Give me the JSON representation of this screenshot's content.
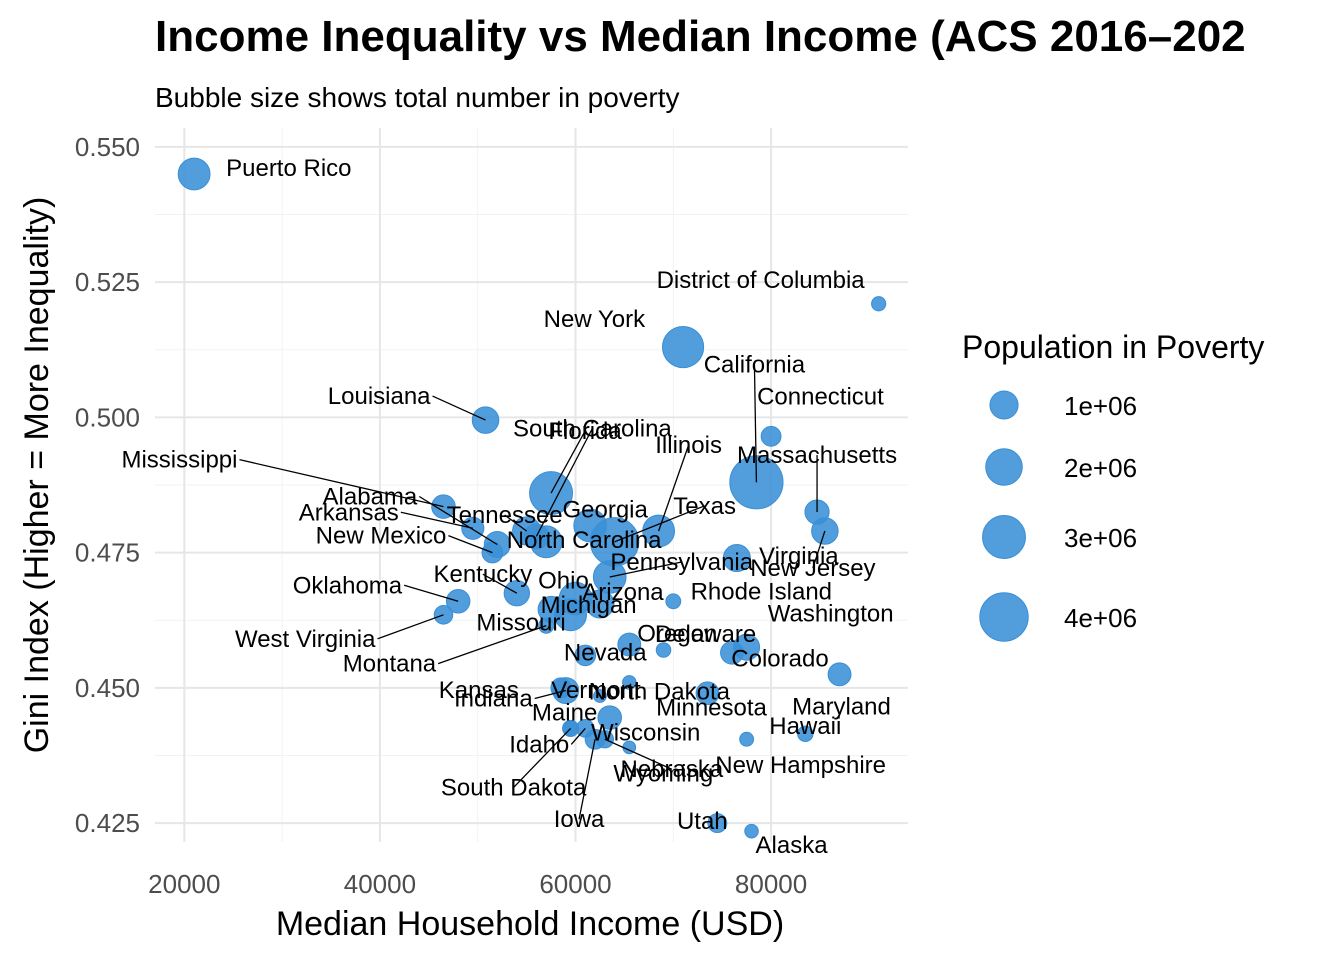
{
  "chart_data": {
    "type": "scatter",
    "title": "Income Inequality vs Median Income (ACS 2016–202",
    "subtitle": "Bubble size shows total number in poverty",
    "xlabel": "Median Household Income (USD)",
    "ylabel": "Gini Index (Higher = More Inequality)",
    "xlim": [
      17000,
      94000
    ],
    "ylim": [
      0.4215,
      0.5535
    ],
    "x_ticks": [
      20000,
      40000,
      60000,
      80000
    ],
    "x_tick_labels": [
      "20000",
      "40000",
      "60000",
      "80000"
    ],
    "y_ticks": [
      0.425,
      0.45,
      0.475,
      0.5,
      0.525,
      0.55
    ],
    "y_tick_labels": [
      "0.425",
      "0.450",
      "0.475",
      "0.500",
      "0.525",
      "0.550"
    ],
    "grid": true,
    "point_color": "#3a8fd6",
    "legend": {
      "title": "Population in Poverty",
      "position": "right",
      "entries": [
        {
          "label": "1e+06",
          "value": 1000000
        },
        {
          "label": "2e+06",
          "value": 2000000
        },
        {
          "label": "3e+06",
          "value": 3000000
        },
        {
          "label": "4e+06",
          "value": 4000000
        }
      ]
    },
    "points": [
      {
        "label": "Puerto Rico",
        "x": 21000,
        "y": 0.545,
        "size": 1400000
      },
      {
        "label": "District of Columbia",
        "x": 91000,
        "y": 0.521,
        "size": 100000
      },
      {
        "label": "New York",
        "x": 71000,
        "y": 0.513,
        "size": 2700000
      },
      {
        "label": "California",
        "x": 78500,
        "y": 0.488,
        "size": 5000000
      },
      {
        "label": "Connecticut",
        "x": 80000,
        "y": 0.4965,
        "size": 350000
      },
      {
        "label": "Massachusetts",
        "x": 84700,
        "y": 0.4825,
        "size": 650000
      },
      {
        "label": "New Jersey",
        "x": 85500,
        "y": 0.479,
        "size": 850000
      },
      {
        "label": "Louisiana",
        "x": 50800,
        "y": 0.4995,
        "size": 850000
      },
      {
        "label": "South Carolina",
        "x": 56000,
        "y": 0.478,
        "size": 700000
      },
      {
        "label": "Florida",
        "x": 57500,
        "y": 0.486,
        "size": 3000000
      },
      {
        "label": "Illinois",
        "x": 68500,
        "y": 0.479,
        "size": 1400000
      },
      {
        "label": "Georgia",
        "x": 61500,
        "y": 0.48,
        "size": 1500000
      },
      {
        "label": "Texas",
        "x": 64000,
        "y": 0.477,
        "size": 4000000
      },
      {
        "label": "Mississippi",
        "x": 46500,
        "y": 0.4835,
        "size": 600000
      },
      {
        "label": "Alabama",
        "x": 52000,
        "y": 0.4765,
        "size": 800000
      },
      {
        "label": "Tennessee",
        "x": 55000,
        "y": 0.479,
        "size": 1000000
      },
      {
        "label": "Arkansas",
        "x": 49500,
        "y": 0.4795,
        "size": 500000
      },
      {
        "label": "North Carolina",
        "x": 57000,
        "y": 0.477,
        "size": 1400000
      },
      {
        "label": "New Mexico",
        "x": 51500,
        "y": 0.475,
        "size": 400000
      },
      {
        "label": "Pennsylvania",
        "x": 63500,
        "y": 0.4705,
        "size": 1500000
      },
      {
        "label": "Virginia",
        "x": 76500,
        "y": 0.474,
        "size": 900000
      },
      {
        "label": "Kentucky",
        "x": 54000,
        "y": 0.4675,
        "size": 750000
      },
      {
        "label": "Ohio",
        "x": 60000,
        "y": 0.4665,
        "size": 1500000
      },
      {
        "label": "Arizona",
        "x": 62500,
        "y": 0.4655,
        "size": 1000000
      },
      {
        "label": "Rhode Island",
        "x": 70000,
        "y": 0.466,
        "size": 120000
      },
      {
        "label": "Oklahoma",
        "x": 48000,
        "y": 0.466,
        "size": 600000
      },
      {
        "label": "Michigan",
        "x": 59500,
        "y": 0.4635,
        "size": 1400000
      },
      {
        "label": "West Virginia",
        "x": 46500,
        "y": 0.4635,
        "size": 280000
      },
      {
        "label": "Missouri",
        "x": 57500,
        "y": 0.4645,
        "size": 800000
      },
      {
        "label": "Montana",
        "x": 57000,
        "y": 0.4615,
        "size": 130000
      },
      {
        "label": "Nevada",
        "x": 61000,
        "y": 0.456,
        "size": 400000
      },
      {
        "label": "Oregon",
        "x": 65500,
        "y": 0.458,
        "size": 550000
      },
      {
        "label": "Delaware",
        "x": 69000,
        "y": 0.457,
        "size": 110000
      },
      {
        "label": "Washington",
        "x": 77500,
        "y": 0.4575,
        "size": 800000
      },
      {
        "label": "Colorado",
        "x": 76000,
        "y": 0.4565,
        "size": 550000
      },
      {
        "label": "Kansas",
        "x": 58500,
        "y": 0.45,
        "size": 350000
      },
      {
        "label": "Vermont",
        "x": 62500,
        "y": 0.4485,
        "size": 60000
      },
      {
        "label": "North Dakota",
        "x": 65500,
        "y": 0.451,
        "size": 80000
      },
      {
        "label": "Maryland",
        "x": 87000,
        "y": 0.4525,
        "size": 550000
      },
      {
        "label": "Indiana",
        "x": 59000,
        "y": 0.4495,
        "size": 800000
      },
      {
        "label": "Minnesota",
        "x": 73500,
        "y": 0.449,
        "size": 550000
      },
      {
        "label": "Maine",
        "x": 59500,
        "y": 0.4425,
        "size": 170000
      },
      {
        "label": "Wisconsin",
        "x": 63500,
        "y": 0.4445,
        "size": 600000
      },
      {
        "label": "Hawaii",
        "x": 83500,
        "y": 0.4415,
        "size": 140000
      },
      {
        "label": "New Hampshire",
        "x": 77500,
        "y": 0.4405,
        "size": 90000
      },
      {
        "label": "Idaho",
        "x": 61000,
        "y": 0.4425,
        "size": 240000
      },
      {
        "label": "Wyoming",
        "x": 65500,
        "y": 0.439,
        "size": 60000
      },
      {
        "label": "Nebraska",
        "x": 63000,
        "y": 0.4405,
        "size": 220000
      },
      {
        "label": "South Dakota",
        "x": 59500,
        "y": 0.4425,
        "size": 110000
      },
      {
        "label": "Iowa",
        "x": 62000,
        "y": 0.4405,
        "size": 350000
      },
      {
        "label": "Utah",
        "x": 74500,
        "y": 0.425,
        "size": 300000
      },
      {
        "label": "Alaska",
        "x": 78000,
        "y": 0.4235,
        "size": 80000
      }
    ]
  }
}
